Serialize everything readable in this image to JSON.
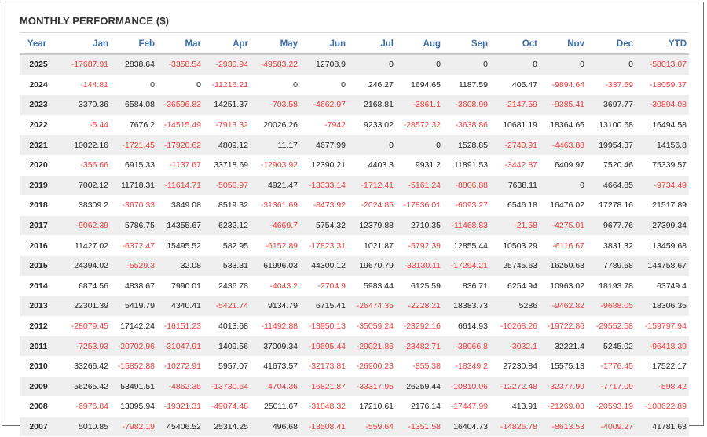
{
  "title": "MONTHLY PERFORMANCE ($)",
  "colors": {
    "header_text": "#3e6ea8",
    "negative": "#ec3d3d",
    "positive": "#222222",
    "stripe": "#efefef"
  },
  "columns": [
    "Year",
    "Jan",
    "Feb",
    "Mar",
    "Apr",
    "May",
    "Jun",
    "Jul",
    "Aug",
    "Sep",
    "Oct",
    "Nov",
    "Dec",
    "YTD"
  ],
  "rows": [
    [
      "2025",
      "-17687.91",
      "2838.64",
      "-3358.54",
      "-2930.94",
      "-49583.22",
      "12708.9",
      "0",
      "0",
      "0",
      "0",
      "0",
      "0",
      "-58013.07"
    ],
    [
      "2024",
      "-144.81",
      "0",
      "0",
      "-11216.21",
      "0",
      "0",
      "246.27",
      "1694.65",
      "1187.59",
      "405.47",
      "-9894.64",
      "-337.69",
      "-18059.37"
    ],
    [
      "2023",
      "3370.36",
      "6584.08",
      "-36596.83",
      "14251.37",
      "-703.58",
      "-4662.97",
      "2168.81",
      "-3861.1",
      "-3608.99",
      "-2147.59",
      "-9385.41",
      "3697.77",
      "-30894.08"
    ],
    [
      "2022",
      "-5.44",
      "7676.2",
      "-14515.49",
      "-7913.32",
      "20026.26",
      "-7942",
      "9233.02",
      "-28572.32",
      "-3638.86",
      "10681.19",
      "18364.66",
      "13100.68",
      "16494.58"
    ],
    [
      "2021",
      "10022.16",
      "-1721.45",
      "-17920.62",
      "4809.12",
      "11.17",
      "4677.99",
      "0",
      "0",
      "1528.85",
      "-2740.91",
      "-4463.88",
      "19954.37",
      "14156.8"
    ],
    [
      "2020",
      "-356.66",
      "6915.33",
      "-1137.67",
      "33718.69",
      "-12903.92",
      "12390.21",
      "4403.3",
      "9931.2",
      "11891.53",
      "-3442.87",
      "6409.97",
      "7520.46",
      "75339.57"
    ],
    [
      "2019",
      "7002.12",
      "11718.31",
      "-11614.71",
      "-5050.97",
      "4921.47",
      "-13333.14",
      "-1712.41",
      "-5161.24",
      "-8806.88",
      "7638.11",
      "0",
      "4664.85",
      "-9734.49"
    ],
    [
      "2018",
      "38309.2",
      "-3670.33",
      "3849.08",
      "8519.32",
      "-31361.69",
      "-8473.92",
      "-2024.85",
      "-17836.01",
      "-6093.27",
      "6546.18",
      "16476.02",
      "17278.16",
      "21517.89"
    ],
    [
      "2017",
      "-9062.39",
      "5786.75",
      "14355.67",
      "6232.12",
      "-4669.7",
      "5754.32",
      "12379.88",
      "2710.35",
      "-11468.83",
      "-21.58",
      "-4275.01",
      "9677.76",
      "27399.34"
    ],
    [
      "2016",
      "11427.02",
      "-6372.47",
      "15495.52",
      "582.95",
      "-6152.89",
      "-17823.31",
      "1021.87",
      "-5792.39",
      "12855.44",
      "10503.29",
      "-6116.67",
      "3831.32",
      "13459.68"
    ],
    [
      "2015",
      "24394.02",
      "-5529.3",
      "32.08",
      "533.31",
      "61996.03",
      "44300.12",
      "19670.79",
      "-33130.11",
      "-17294.21",
      "25745.63",
      "16250.63",
      "7789.68",
      "144758.67"
    ],
    [
      "2014",
      "6874.56",
      "4838.67",
      "7990.01",
      "2436.78",
      "-4043.2",
      "-2704.9",
      "5983.44",
      "6125.59",
      "836.71",
      "6254.94",
      "10963.02",
      "18193.78",
      "63749.4"
    ],
    [
      "2013",
      "22301.39",
      "5419.79",
      "4340.41",
      "-5421.74",
      "9134.79",
      "6715.41",
      "-26474.35",
      "-2228.21",
      "18383.73",
      "5286",
      "-9462.82",
      "-9688.05",
      "18306.35"
    ],
    [
      "2012",
      "-28079.45",
      "17142.24",
      "-16151.23",
      "4013.68",
      "-11492.88",
      "-13950.13",
      "-35059.24",
      "-23292.16",
      "6614.93",
      "-10268.26",
      "-19722.86",
      "-29552.58",
      "-159797.94"
    ],
    [
      "2011",
      "-7253.93",
      "-20702.96",
      "-31047.91",
      "1409.56",
      "37009.34",
      "-19695.44",
      "-29021.86",
      "-23482.71",
      "-38066.8",
      "-3032.1",
      "32221.4",
      "5245.02",
      "-96418.39"
    ],
    [
      "2010",
      "33266.42",
      "-15852.88",
      "-10272.91",
      "5957.07",
      "41673.57",
      "-32173.81",
      "-26900.23",
      "-855.38",
      "-18349.2",
      "27230.84",
      "15575.13",
      "-1776.45",
      "17522.17"
    ],
    [
      "2009",
      "56265.42",
      "53491.51",
      "-4862.35",
      "-13730.64",
      "-4704.36",
      "-16821.87",
      "-33317.95",
      "26259.44",
      "-10810.06",
      "-12272.48",
      "-32377.99",
      "-7717.09",
      "-598.42"
    ],
    [
      "2008",
      "-6976.84",
      "13095.94",
      "-19321.31",
      "-49074.48",
      "25011.67",
      "-31848.32",
      "17210.61",
      "2176.14",
      "-17447.99",
      "413.91",
      "-21269.03",
      "-20593.19",
      "-108622.89"
    ],
    [
      "2007",
      "5010.85",
      "-7982.19",
      "45406.52",
      "25314.25",
      "496.68",
      "-13508.41",
      "-559.64",
      "-1351.58",
      "16404.73",
      "-14826.78",
      "-8613.53",
      "-4009.27",
      "41781.63"
    ]
  ]
}
